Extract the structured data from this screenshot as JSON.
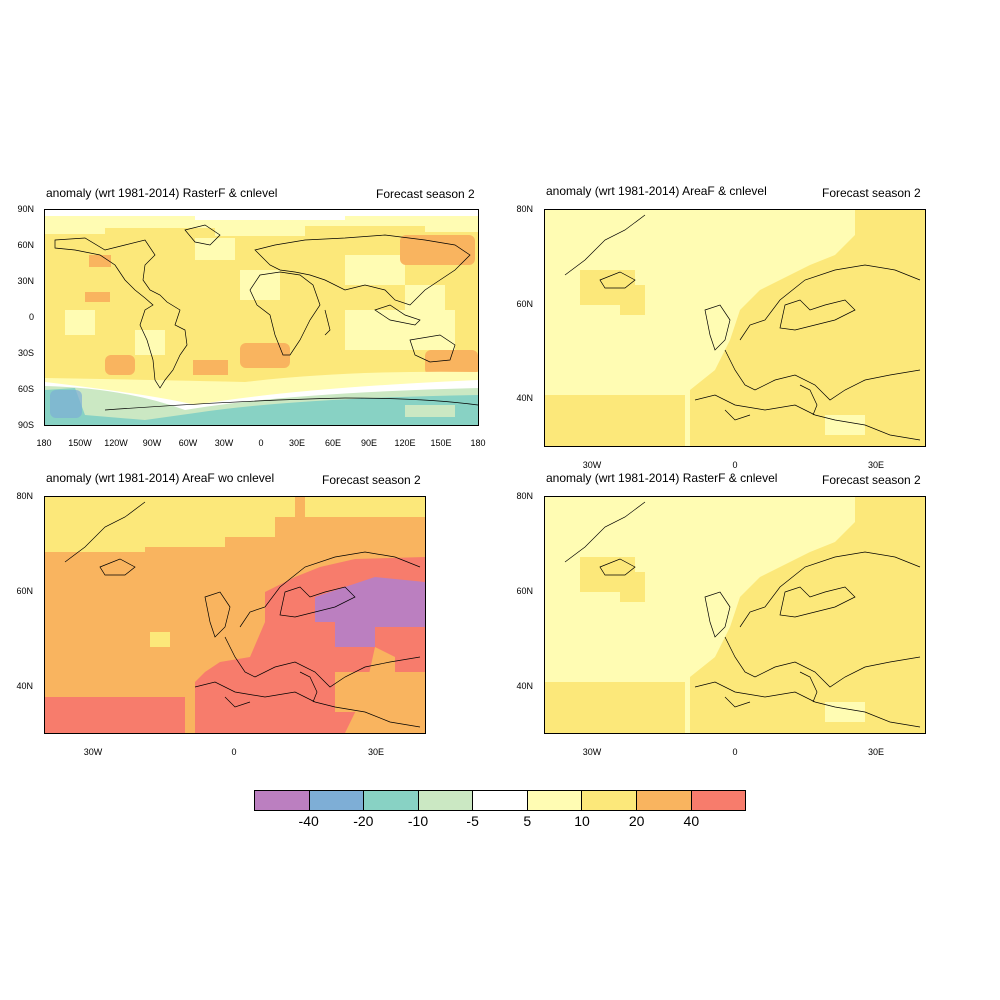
{
  "panels": [
    {
      "id": "global",
      "title": "anomaly (wrt 1981-2014) RasterF & cnlevel",
      "subtitle": "Forecast season 2",
      "lat_labels": [
        "90N",
        "60N",
        "30N",
        "0",
        "30S",
        "60S",
        "90S"
      ],
      "lon_labels": [
        "180",
        "150W",
        "120W",
        "90W",
        "60W",
        "30W",
        "0",
        "30E",
        "60E",
        "90E",
        "120E",
        "150E",
        "180"
      ]
    },
    {
      "id": "europe-areaf",
      "title": "anomaly (wrt 1981-2014) AreaF & cnlevel",
      "subtitle": "Forecast season 2",
      "lat_labels": [
        "80N",
        "60N",
        "40N"
      ],
      "lon_labels": [
        "30W",
        "0",
        "30E"
      ]
    },
    {
      "id": "europe-areaf-wo",
      "title": "anomaly (wrt 1981-2014) AreaF wo cnlevel",
      "subtitle": "Forecast season 2",
      "lat_labels": [
        "80N",
        "60N",
        "40N"
      ],
      "lon_labels": [
        "30W",
        "0",
        "30E"
      ]
    },
    {
      "id": "europe-rasterf",
      "title": "anomaly (wrt 1981-2014) RasterF & cnlevel",
      "subtitle": "Forecast season 2",
      "lat_labels": [
        "80N",
        "60N",
        "40N"
      ],
      "lon_labels": [
        "30W",
        "0",
        "30E"
      ]
    }
  ],
  "colorbar": {
    "colors": [
      "#bb7fc0",
      "#7eaed6",
      "#88d2c4",
      "#cbe8c3",
      "#ffffff",
      "#fffcb3",
      "#fce87a",
      "#f9b45f",
      "#f77c6c"
    ],
    "labels": [
      "-40",
      "-20",
      "-10",
      "-5",
      "5",
      "10",
      "20",
      "40"
    ]
  }
}
